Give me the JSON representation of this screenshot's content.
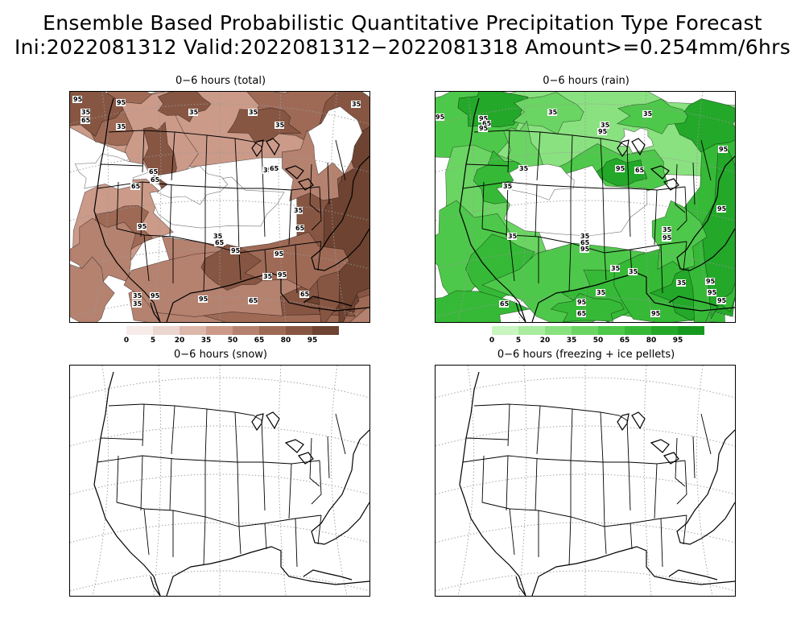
{
  "title_line1": "Ensemble Based Probabilistic Quantitative Precipitation Type Forecast",
  "title_line2": "Ini:2022081312 Valid:2022081312−2022081318 Amount>=0.254mm/6hrs",
  "panels": [
    {
      "id": "total",
      "title": "0−6 hours (total)",
      "field": "total"
    },
    {
      "id": "rain",
      "title": "0−6 hours (rain)",
      "field": "rain"
    },
    {
      "id": "snow",
      "title": "0−6 hours (snow)",
      "field": "none"
    },
    {
      "id": "frz",
      "title": "0−6 hours (freezing + ice pellets)",
      "field": "none"
    }
  ],
  "colorbars": {
    "total": {
      "labels": [
        "0",
        "5",
        "20",
        "35",
        "50",
        "65",
        "80",
        "95"
      ],
      "colors": [
        "#f7ecea",
        "#ecd6d0",
        "#dcb7aa",
        "#cb9a89",
        "#b5826f",
        "#9e6a56",
        "#875643",
        "#6e4332"
      ]
    },
    "rain": {
      "labels": [
        "0",
        "5",
        "20",
        "35",
        "50",
        "65",
        "80",
        "95"
      ],
      "colors": [
        "#c8f5c0",
        "#a9eca0",
        "#8ae180",
        "#6bd563",
        "#4ec84a",
        "#36b937",
        "#24a82a",
        "#16991f"
      ]
    }
  },
  "contour_labels": [
    "35",
    "65",
    "95"
  ]
}
